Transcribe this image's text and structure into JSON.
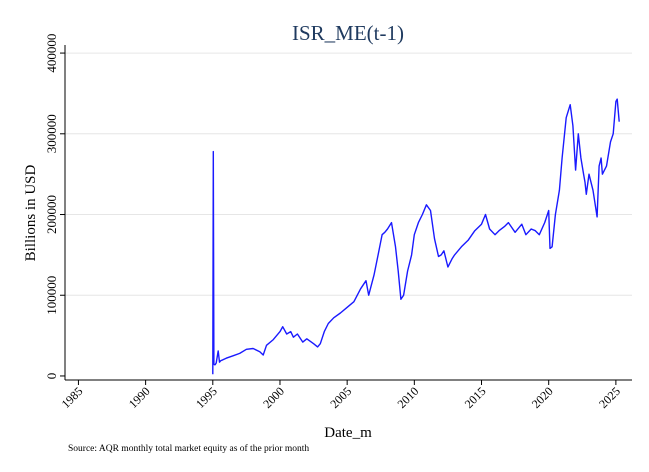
{
  "chart_data": {
    "type": "line",
    "title": "ISR_ME(t-1)",
    "xlabel": "Date_m",
    "ylabel": "Billions in USD",
    "source_note": "Source: AQR monthly total market equity as of the prior month",
    "xlim": [
      1984.0,
      2026.2
    ],
    "ylim": [
      -5000,
      410000
    ],
    "x_ticks": [
      1985,
      1990,
      1995,
      2000,
      2005,
      2010,
      2015,
      2020,
      2025
    ],
    "x_tick_labels": [
      "1985",
      "1990",
      "1995",
      "2000",
      "2005",
      "2010",
      "2015",
      "2020",
      "2025"
    ],
    "y_ticks": [
      0,
      100000,
      200000,
      300000,
      400000
    ],
    "y_tick_labels": [
      "0",
      "100000",
      "200000",
      "300000",
      "400000"
    ],
    "grid": "horizontal",
    "line_color": "#1a1aff",
    "series": [
      {
        "x": [
          1995.0,
          1995.04,
          1995.08,
          1995.12,
          1995.17,
          1995.25,
          1995.4,
          1995.5,
          1995.6,
          1995.75,
          1996.0,
          1996.5,
          1997.0,
          1997.5,
          1998.0,
          1998.5,
          1998.75,
          1999.0,
          1999.5,
          2000.0,
          2000.2,
          2000.5,
          2000.8,
          2001.0,
          2001.3,
          2001.7,
          2002.0,
          2002.5,
          2002.8,
          2003.0,
          2003.3,
          2003.6,
          2004.0,
          2004.5,
          2005.0,
          2005.5,
          2006.0,
          2006.4,
          2006.6,
          2007.0,
          2007.3,
          2007.6,
          2007.8,
          2008.0,
          2008.3,
          2008.6,
          2008.8,
          2009.0,
          2009.2,
          2009.5,
          2009.8,
          2010.0,
          2010.3,
          2010.6,
          2010.9,
          2011.2,
          2011.5,
          2011.8,
          2012.0,
          2012.2,
          2012.5,
          2012.8,
          2013.0,
          2013.5,
          2014.0,
          2014.5,
          2015.0,
          2015.3,
          2015.6,
          2016.0,
          2016.3,
          2016.7,
          2017.0,
          2017.5,
          2018.0,
          2018.3,
          2018.7,
          2019.0,
          2019.3,
          2019.7,
          2020.0,
          2020.1,
          2020.25,
          2020.5,
          2020.8,
          2021.0,
          2021.3,
          2021.6,
          2021.8,
          2022.0,
          2022.2,
          2022.4,
          2022.6,
          2022.7,
          2022.8,
          2023.0,
          2023.3,
          2023.6,
          2023.75,
          2023.9,
          2024.0,
          2024.3,
          2024.6,
          2024.8,
          2025.0,
          2025.1,
          2025.25
        ],
        "values": [
          2000,
          278000,
          15000,
          14000,
          14000,
          16000,
          31000,
          17000,
          19000,
          20000,
          22000,
          25000,
          28000,
          33000,
          34000,
          30000,
          26000,
          38000,
          45000,
          55000,
          61000,
          52000,
          55000,
          48000,
          52000,
          42000,
          46000,
          40000,
          36000,
          40000,
          55000,
          65000,
          72000,
          78000,
          85000,
          92000,
          108000,
          118000,
          100000,
          125000,
          150000,
          175000,
          178000,
          182000,
          190000,
          160000,
          130000,
          95000,
          100000,
          130000,
          150000,
          175000,
          190000,
          200000,
          212000,
          205000,
          170000,
          148000,
          150000,
          155000,
          135000,
          145000,
          150000,
          160000,
          168000,
          180000,
          188000,
          200000,
          182000,
          175000,
          180000,
          185000,
          190000,
          178000,
          188000,
          175000,
          182000,
          180000,
          175000,
          190000,
          205000,
          158000,
          160000,
          200000,
          230000,
          270000,
          320000,
          336000,
          310000,
          255000,
          300000,
          270000,
          250000,
          240000,
          225000,
          250000,
          230000,
          197000,
          260000,
          270000,
          250000,
          260000,
          290000,
          300000,
          340000,
          343000,
          315000
        ]
      }
    ]
  }
}
